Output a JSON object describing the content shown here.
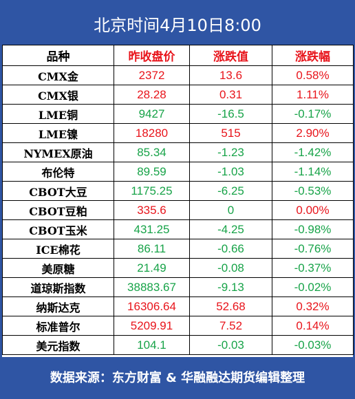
{
  "header": {
    "title": "北京时间4月10日8:00",
    "background": "#2f55a4"
  },
  "table": {
    "columns": [
      "品种",
      "昨收盘价",
      "涨跌值",
      "涨跌幅"
    ],
    "column_colors": [
      "#000000",
      "#e8141b",
      "#e8141b",
      "#e8141b"
    ],
    "palette": {
      "red": "#e8141b",
      "green": "#17a348"
    },
    "rows": [
      [
        "CMX金",
        "2372",
        "13.6",
        "0.58%"
      ],
      [
        "CMX银",
        "28.28",
        "0.31",
        "1.11%"
      ],
      [
        "LME铜",
        "9427",
        "-16.5",
        "-0.17%"
      ],
      [
        "LME镍",
        "18280",
        "515",
        "2.90%"
      ],
      [
        "NYMEX原油",
        "85.34",
        "-1.23",
        "-1.42%"
      ],
      [
        "布伦特",
        "89.59",
        "-1.03",
        "-1.14%"
      ],
      [
        "CBOT大豆",
        "1175.25",
        "-6.25",
        "-0.53%"
      ],
      [
        "CBOT豆粕",
        "335.6",
        "0",
        "0.00%"
      ],
      [
        "CBOT玉米",
        "431.25",
        "-4.25",
        "-0.98%"
      ],
      [
        "ICE棉花",
        "86.11",
        "-0.66",
        "-0.76%"
      ],
      [
        "美原糖",
        "21.49",
        "-0.08",
        "-0.37%"
      ],
      [
        "道琼斯指数",
        "38883.67",
        "-9.13",
        "-0.02%"
      ],
      [
        "纳斯达克",
        "16306.64",
        "52.68",
        "0.32%"
      ],
      [
        "标准普尔",
        "5209.91",
        "7.52",
        "0.14%"
      ],
      [
        "美元指数",
        "104.1",
        "-0.03",
        "-0.03%"
      ]
    ],
    "row_colors": [
      [
        "red",
        "red",
        "red"
      ],
      [
        "red",
        "red",
        "red"
      ],
      [
        "green",
        "green",
        "green"
      ],
      [
        "red",
        "red",
        "red"
      ],
      [
        "green",
        "green",
        "green"
      ],
      [
        "green",
        "green",
        "green"
      ],
      [
        "green",
        "green",
        "green"
      ],
      [
        "red",
        "green",
        "red"
      ],
      [
        "green",
        "green",
        "green"
      ],
      [
        "green",
        "green",
        "green"
      ],
      [
        "green",
        "green",
        "green"
      ],
      [
        "green",
        "green",
        "green"
      ],
      [
        "red",
        "red",
        "red"
      ],
      [
        "red",
        "red",
        "red"
      ],
      [
        "green",
        "green",
        "green"
      ]
    ]
  },
  "footer": {
    "text": "数据来源：东方财富 & 华融融达期货编辑整理"
  }
}
